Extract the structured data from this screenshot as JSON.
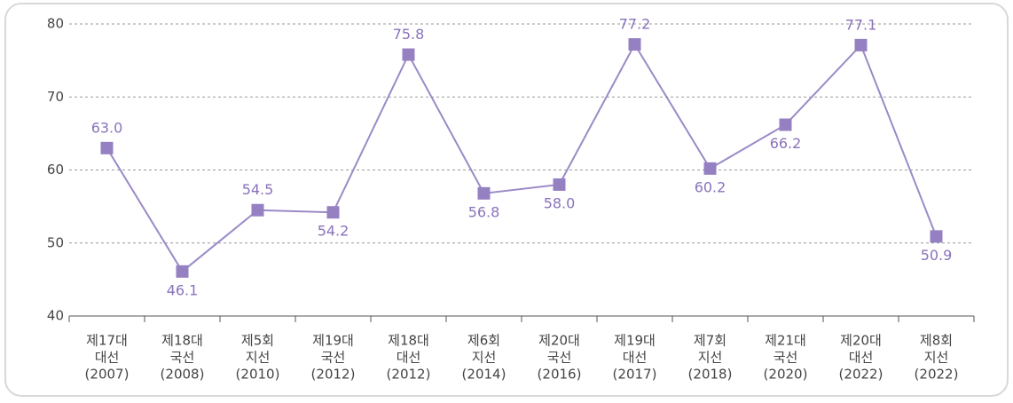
{
  "chart_data": {
    "type": "line",
    "categories": [
      [
        "제17대",
        "대선",
        "(2007)"
      ],
      [
        "제18대",
        "국선",
        "(2008)"
      ],
      [
        "제5회",
        "지선",
        "(2010)"
      ],
      [
        "제19대",
        "국선",
        "(2012)"
      ],
      [
        "제18대",
        "대선",
        "(2012)"
      ],
      [
        "제6회",
        "지선",
        "(2014)"
      ],
      [
        "제20대",
        "국선",
        "(2016)"
      ],
      [
        "제19대",
        "대선",
        "(2017)"
      ],
      [
        "제7회",
        "지선",
        "(2018)"
      ],
      [
        "제21대",
        "국선",
        "(2020)"
      ],
      [
        "제20대",
        "대선",
        "(2022)"
      ],
      [
        "제8회",
        "지선",
        "(2022)"
      ]
    ],
    "values": [
      63.0,
      46.1,
      54.5,
      54.2,
      75.8,
      56.8,
      58.0,
      77.2,
      60.2,
      66.2,
      77.1,
      50.9
    ],
    "value_labels": [
      "63.0",
      "46.1",
      "54.5",
      "54.2",
      "75.8",
      "56.8",
      "58.0",
      "77.2",
      "60.2",
      "66.2",
      "77.1",
      "50.9"
    ],
    "color": "#9b8ac6",
    "ylim": [
      40,
      80
    ],
    "yticks": [
      40,
      50,
      60,
      70,
      80
    ],
    "grid": true
  }
}
